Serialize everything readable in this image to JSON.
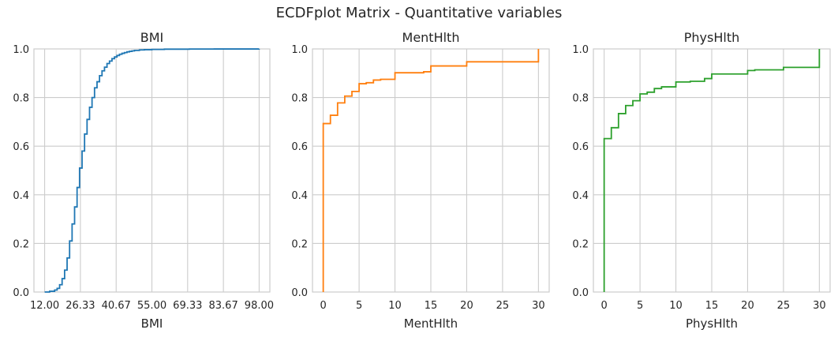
{
  "suptitle": "ECDFplot Matrix - Quantitative variables",
  "chart_data": [
    {
      "type": "line",
      "drawstyle": "steps-post",
      "title": "BMI",
      "xlabel": "BMI",
      "ylabel": "",
      "color": "#1f77b4",
      "xlim": [
        7.7,
        102.3
      ],
      "ylim": [
        0,
        1
      ],
      "grid": true,
      "xticks": [
        12,
        26.33,
        40.67,
        55,
        69.33,
        83.67,
        98
      ],
      "xtick_labels": [
        "12.00",
        "26.33",
        "40.67",
        "55.00",
        "69.33",
        "83.67",
        "98.00"
      ],
      "yticks": [
        0,
        0.2,
        0.4,
        0.6,
        0.8,
        1.0
      ],
      "ytick_labels": [
        "0.0",
        "0.2",
        "0.4",
        "0.6",
        "0.8",
        "1.0"
      ],
      "x": [
        12,
        14,
        16,
        17,
        18,
        19,
        20,
        21,
        22,
        23,
        24,
        25,
        26,
        27,
        28,
        29,
        30,
        31,
        32,
        33,
        34,
        35,
        36,
        37,
        38,
        39,
        40,
        41,
        42,
        43,
        44,
        45,
        46,
        47,
        48,
        50,
        52,
        55,
        60,
        70,
        80,
        98
      ],
      "y": [
        0.0,
        0.003,
        0.008,
        0.015,
        0.03,
        0.055,
        0.09,
        0.14,
        0.21,
        0.28,
        0.35,
        0.43,
        0.51,
        0.58,
        0.65,
        0.71,
        0.76,
        0.8,
        0.84,
        0.865,
        0.89,
        0.91,
        0.925,
        0.94,
        0.95,
        0.96,
        0.967,
        0.973,
        0.978,
        0.982,
        0.985,
        0.988,
        0.99,
        0.992,
        0.994,
        0.996,
        0.997,
        0.998,
        0.999,
        0.9995,
        0.9998,
        1.0
      ]
    },
    {
      "type": "line",
      "drawstyle": "steps-post",
      "title": "MentHlth",
      "xlabel": "MentHlth",
      "ylabel": "",
      "color": "#ff7f0e",
      "xlim": [
        -1.5,
        31.5
      ],
      "ylim": [
        0,
        1
      ],
      "grid": true,
      "xticks": [
        0,
        5,
        10,
        15,
        20,
        25,
        30
      ],
      "xtick_labels": [
        "0",
        "5",
        "10",
        "15",
        "20",
        "25",
        "30"
      ],
      "yticks": [
        0,
        0.2,
        0.4,
        0.6,
        0.8,
        1.0
      ],
      "ytick_labels": [
        "0.0",
        "0.2",
        "0.4",
        "0.6",
        "0.8",
        "1.0"
      ],
      "x": [
        0,
        1,
        2,
        3,
        4,
        5,
        6,
        7,
        8,
        10,
        14,
        15,
        20,
        30
      ],
      "y": [
        0.693,
        0.727,
        0.778,
        0.806,
        0.825,
        0.857,
        0.861,
        0.872,
        0.875,
        0.902,
        0.906,
        0.93,
        0.947,
        1.0
      ]
    },
    {
      "type": "line",
      "drawstyle": "steps-post",
      "title": "PhysHlth",
      "xlabel": "PhysHlth",
      "ylabel": "",
      "color": "#2ca02c",
      "xlim": [
        -1.5,
        31.5
      ],
      "ylim": [
        0,
        1
      ],
      "grid": true,
      "xticks": [
        0,
        5,
        10,
        15,
        20,
        25,
        30
      ],
      "xtick_labels": [
        "0",
        "5",
        "10",
        "15",
        "20",
        "25",
        "30"
      ],
      "yticks": [
        0,
        0.2,
        0.4,
        0.6,
        0.8,
        1.0
      ],
      "ytick_labels": [
        "0.0",
        "0.2",
        "0.4",
        "0.6",
        "0.8",
        "1.0"
      ],
      "x": [
        0,
        1,
        2,
        3,
        4,
        5,
        6,
        7,
        8,
        10,
        12,
        14,
        15,
        20,
        21,
        25,
        30
      ],
      "y": [
        0.631,
        0.676,
        0.734,
        0.767,
        0.787,
        0.815,
        0.822,
        0.837,
        0.844,
        0.864,
        0.867,
        0.878,
        0.897,
        0.911,
        0.914,
        0.924,
        1.0
      ]
    }
  ]
}
